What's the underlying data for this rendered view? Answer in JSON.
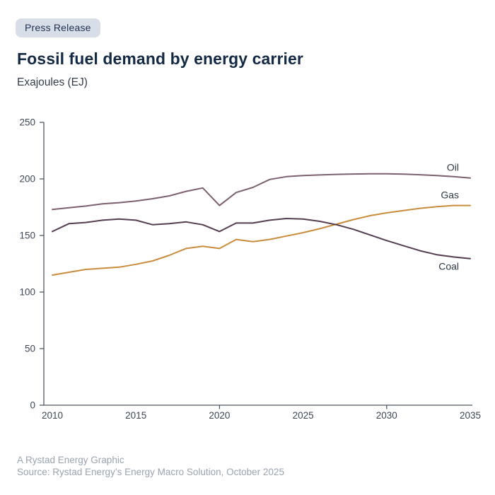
{
  "badge": {
    "label": "Press Release"
  },
  "header": {
    "title": "Fossil fuel demand by energy carrier",
    "subtitle": "Exajoules (EJ)"
  },
  "footer": {
    "credit": "A Rystad Energy Graphic",
    "source": "Source: Rystad Energy’s Energy Macro Solution, October 2025"
  },
  "colors": {
    "title_navy": "#142943",
    "badge_bg": "#d8dee8",
    "badge_text": "#1d3050",
    "axis_line": "#4d5761",
    "tick_text": "#3c4652",
    "footer_text": "#9aa4b0",
    "oil": "#7c6070",
    "gas": "#c98c3c",
    "coal": "#553d51"
  },
  "chart_data": {
    "type": "line",
    "title": "Fossil fuel demand by energy carrier",
    "xlabel": "",
    "ylabel": "Exajoules (EJ)",
    "xlim": [
      2010,
      2035
    ],
    "ylim": [
      0,
      250
    ],
    "yticks": [
      0,
      50,
      100,
      150,
      200,
      250
    ],
    "xticks": [
      2010,
      2015,
      2020,
      2025,
      2030,
      2035
    ],
    "xticks_marked": [
      2020,
      2030
    ],
    "grid": false,
    "legend_position": "end-of-line",
    "x": [
      2010,
      2011,
      2012,
      2013,
      2014,
      2015,
      2016,
      2017,
      2018,
      2019,
      2020,
      2021,
      2022,
      2023,
      2024,
      2025,
      2026,
      2027,
      2028,
      2029,
      2030,
      2031,
      2032,
      2033,
      2034,
      2035
    ],
    "series": [
      {
        "name": "Oil",
        "color": "#7c6070",
        "label_side": "above",
        "values": [
          173,
          174.5,
          176,
          178,
          179,
          180.5,
          182.5,
          185,
          189,
          192,
          176.5,
          188,
          192.5,
          199.5,
          202,
          203,
          203.5,
          204,
          204.3,
          204.5,
          204.5,
          204.2,
          203.7,
          203,
          202,
          200.8
        ]
      },
      {
        "name": "Gas",
        "color": "#c98c3c",
        "label_side": "above",
        "values": [
          115,
          117.5,
          120,
          121,
          122,
          124.5,
          127.5,
          132.5,
          138.5,
          140.5,
          138.5,
          146.5,
          144.5,
          146.5,
          149.5,
          152.5,
          156,
          160,
          164,
          167.5,
          170,
          172,
          174,
          175.5,
          176.5,
          176.5
        ]
      },
      {
        "name": "Coal",
        "color": "#553d51",
        "label_side": "below",
        "values": [
          153.5,
          160.5,
          161.5,
          163.5,
          164.5,
          163.5,
          159.5,
          160.5,
          162,
          159.5,
          153.5,
          161,
          161,
          163.5,
          165,
          164.5,
          162.5,
          159.5,
          155.5,
          150.5,
          145.5,
          141,
          136.5,
          133,
          131,
          129.5
        ]
      }
    ]
  }
}
